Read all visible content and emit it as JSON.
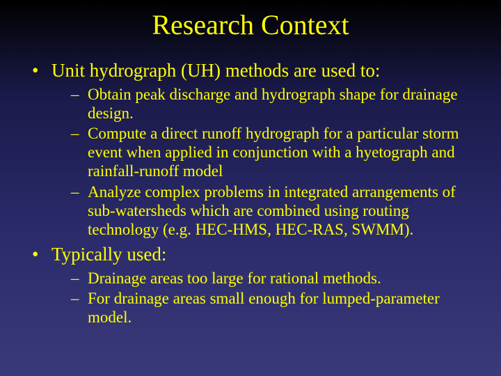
{
  "slide": {
    "title": "Research Context",
    "colors": {
      "text": "#ffff00",
      "background_top": "#000000",
      "background_bottom": "#3a3a7a"
    },
    "typography": {
      "font_family": "Times New Roman",
      "title_fontsize": 40,
      "level1_fontsize": 27,
      "level2_fontsize": 23
    },
    "bullets": [
      {
        "text": "Unit hydrograph (UH) methods are used to:",
        "sub": [
          "Obtain peak discharge and hydrograph shape for drainage design.",
          "Compute a direct runoff hydrograph for a particular storm event when applied in conjunction with a hyetograph and rainfall-runoff model",
          "Analyze complex problems in integrated arrangements of sub-watersheds which are combined using routing technology (e.g. HEC-HMS, HEC-RAS, SWMM)."
        ]
      },
      {
        "text": "Typically used:",
        "sub": [
          "Drainage areas too large for rational methods.",
          "For drainage areas small enough for lumped-parameter model."
        ]
      }
    ]
  }
}
